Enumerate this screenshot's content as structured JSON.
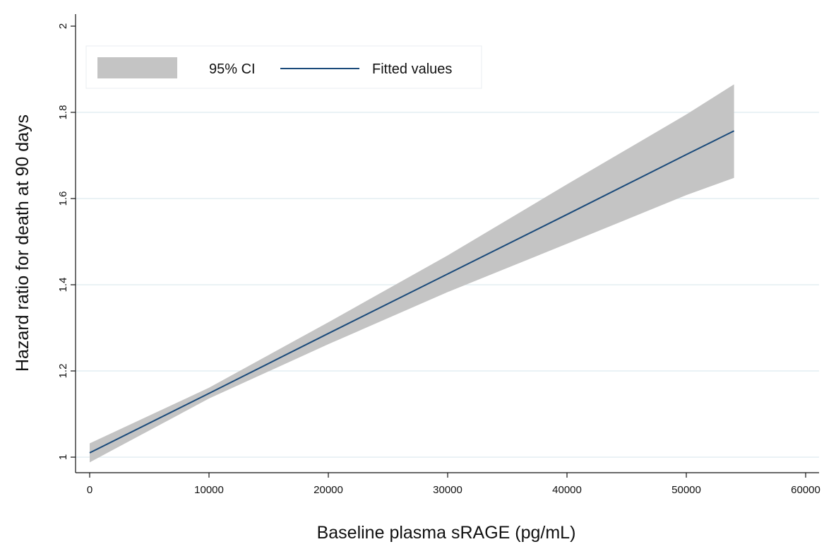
{
  "chart_data": {
    "type": "line",
    "title": "",
    "xlabel": "Baseline plasma sRAGE (pg/mL)",
    "ylabel": "Hazard ratio for death at 90 days",
    "xlim": [
      0,
      60000
    ],
    "ylim": [
      1,
      2
    ],
    "x_ticks": [
      0,
      10000,
      20000,
      30000,
      40000,
      50000,
      60000
    ],
    "y_ticks": [
      1,
      1.2,
      1.4,
      1.6,
      1.8,
      2
    ],
    "x_tick_labels": [
      "0",
      "10000",
      "20000",
      "30000",
      "40000",
      "50000",
      "60000"
    ],
    "y_tick_labels": [
      "1",
      "1.2",
      "1.4",
      "1.6",
      "1.8",
      "2"
    ],
    "grid": "horizontal",
    "legend_position": "top-left",
    "legend": {
      "ci_label": "95% CI",
      "fit_label": "Fitted values"
    },
    "series": [
      {
        "name": "Fitted values",
        "x": [
          0,
          10000,
          20000,
          30000,
          40000,
          50000,
          54000
        ],
        "values": [
          1.01,
          1.148,
          1.287,
          1.425,
          1.563,
          1.702,
          1.757
        ]
      }
    ],
    "ci_band": {
      "name": "95% CI",
      "x": [
        0,
        10000,
        20000,
        30000,
        40000,
        50000,
        54000
      ],
      "lower": [
        0.988,
        1.136,
        1.262,
        1.383,
        1.495,
        1.608,
        1.648
      ],
      "upper": [
        1.032,
        1.161,
        1.313,
        1.468,
        1.633,
        1.795,
        1.865
      ]
    },
    "colors": {
      "fit_line": "#1a4a7a",
      "ci_fill": "#c4c4c4",
      "grid": "#e4eef2",
      "axis": "#111111"
    }
  }
}
